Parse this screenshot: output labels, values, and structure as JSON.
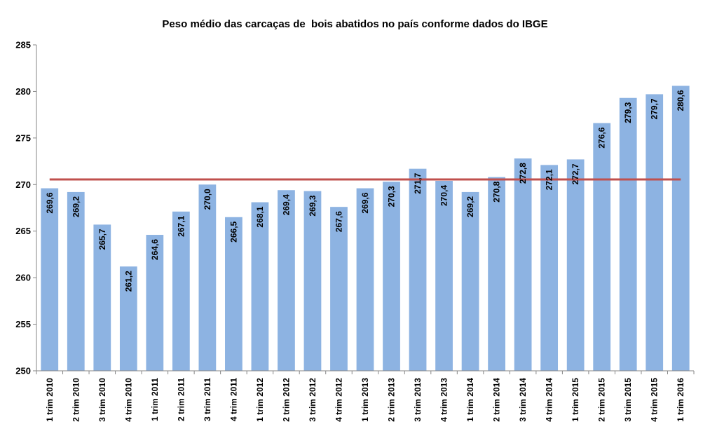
{
  "chart_data": {
    "type": "bar",
    "title": "Peso médio das carcaças de  bois abatidos no país conforme dados do IBGE",
    "categories": [
      "1 trim 2010",
      "2 trim 2010",
      "3 trim 2010",
      "4 trim 2010",
      "1 trim 2011",
      "2 trim 2011",
      "3 trim 2011",
      "4 trim 2011",
      "1 trim 2012",
      "2 trim 2012",
      "3 trim 2012",
      "4 trim 2012",
      "1 trim 2013",
      "2 trim 2013",
      "3 trim 2013",
      "4 trim 2013",
      "1 trim 2014",
      "2 trim 2014",
      "3 trim 2014",
      "4 trim 2014",
      "1 trim 2015",
      "2 trim 2015",
      "3 trim 2015",
      "4 trim 2015",
      "1 trim 2016"
    ],
    "values": [
      269.6,
      269.2,
      265.7,
      261.2,
      264.6,
      267.1,
      270.0,
      266.5,
      268.1,
      269.4,
      269.3,
      267.6,
      269.6,
      270.3,
      271.7,
      270.4,
      269.2,
      270.8,
      272.8,
      272.1,
      272.7,
      276.6,
      279.3,
      279.7,
      280.6
    ],
    "value_labels": [
      "269,6",
      "269,2",
      "265,7",
      "261,2",
      "264,6",
      "267,1",
      "270,0",
      "266,5",
      "268,1",
      "269,4",
      "269,3",
      "267,6",
      "269,6",
      "270,3",
      "271,7",
      "270,4",
      "269,2",
      "270,8",
      "272,8",
      "272,1",
      "272,7",
      "276,6",
      "279,3",
      "279,7",
      "280,6"
    ],
    "reference_line": {
      "value": 270.55,
      "color": "#C0504D"
    },
    "ylim": [
      250,
      285
    ],
    "yticks": [
      250,
      255,
      260,
      265,
      270,
      275,
      280,
      285
    ],
    "bar_color": "#8DB3E2",
    "grid": false,
    "legend": "none",
    "xlabel": "",
    "ylabel": ""
  }
}
